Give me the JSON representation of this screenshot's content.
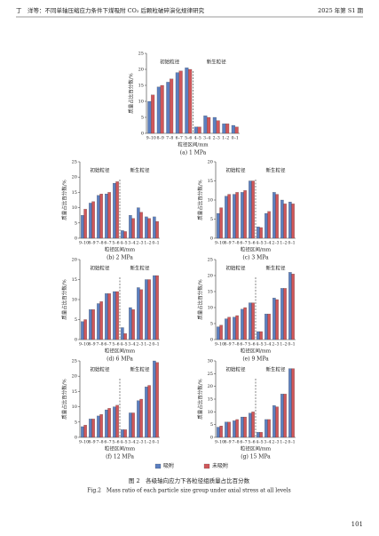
{
  "header": {
    "left": "丁　洋等：不同单轴压缩应力条件下煤吸附 CO₂ 后颗粒破碎演化规律研究",
    "right": "2025 年第 S1 期"
  },
  "legend": [
    {
      "name": "吸附",
      "color": "#5b7fc0"
    },
    {
      "name": "未吸附",
      "color": "#d0575a"
    }
  ],
  "chart_data": [
    {
      "type": "bar",
      "caption": "(a) 1 MPa",
      "ylabel": "质量占比百分数/%",
      "xlabel": "粒径区间/mm",
      "annotations": [
        "初始粒径",
        "新生粒径"
      ],
      "categories": [
        "9–10",
        "8–9",
        "7–8",
        "6–7",
        "5–6",
        "4–5",
        "3–4",
        "2–3",
        "1–2",
        "0–1"
      ],
      "series": [
        {
          "values": [
            10,
            14.5,
            16,
            19,
            20.5,
            2,
            5.5,
            5,
            3,
            2.5
          ]
        },
        {
          "values": [
            12,
            15,
            17,
            19.5,
            20,
            2,
            5,
            4,
            3,
            2
          ]
        }
      ],
      "ylim": [
        0,
        25
      ],
      "yticks": [
        0,
        5,
        10,
        15,
        20,
        25
      ]
    },
    {
      "type": "bar",
      "caption": "(b) 2 MPa",
      "ylabel": "质量占比百分数/%",
      "xlabel": "粒径区间/mm",
      "annotations": [
        "初始粒径",
        "新生粒径"
      ],
      "categories": [
        "9–10",
        "8–9",
        "7–8",
        "6–7",
        "5–6",
        "4–5",
        "3–4",
        "2–3",
        "1–2",
        "0–1"
      ],
      "series": [
        {
          "values": [
            7.5,
            11.5,
            14,
            14.5,
            18,
            2.5,
            7.5,
            10,
            7,
            7
          ]
        },
        {
          "values": [
            9.5,
            12,
            14.5,
            15,
            18.5,
            2.2,
            6.5,
            8.5,
            6.5,
            5.5
          ]
        }
      ],
      "ylim": [
        0,
        25
      ],
      "yticks": [
        0,
        5,
        10,
        15,
        20,
        25
      ]
    },
    {
      "type": "bar",
      "caption": "(c) 3 MPa",
      "ylabel": "质量占比百分数/%",
      "xlabel": "粒径区间/mm",
      "annotations": [
        "初始粒径",
        "新生粒径"
      ],
      "categories": [
        "9–10",
        "8–9",
        "7–8",
        "6–7",
        "5–6",
        "4–5",
        "3–4",
        "2–3",
        "1–2",
        "0–1"
      ],
      "series": [
        {
          "values": [
            6.5,
            11,
            11.5,
            12,
            15,
            3,
            6.5,
            12,
            10,
            9.5
          ]
        },
        {
          "values": [
            8,
            11.5,
            12,
            12.5,
            15,
            2.8,
            7,
            11.5,
            9,
            9
          ]
        }
      ],
      "ylim": [
        0,
        20
      ],
      "yticks": [
        0,
        5,
        10,
        15,
        20
      ]
    },
    {
      "type": "bar",
      "caption": "(d) 6 MPa",
      "ylabel": "质量占比百分数/%",
      "xlabel": "粒径区间/mm",
      "annotations": [
        "初始粒径",
        "新生粒径"
      ],
      "categories": [
        "9–10",
        "8–9",
        "7–8",
        "6–7",
        "5–6",
        "4–5",
        "3–4",
        "2–3",
        "1–2",
        "0–1"
      ],
      "series": [
        {
          "values": [
            4.5,
            7.5,
            9,
            11.5,
            12,
            3,
            8,
            13,
            15,
            16
          ]
        },
        {
          "values": [
            5,
            7.5,
            9.5,
            11.5,
            12,
            1.5,
            7.5,
            12.5,
            15,
            16
          ]
        }
      ],
      "ylim": [
        0,
        20
      ],
      "yticks": [
        0,
        5,
        10,
        15,
        20
      ]
    },
    {
      "type": "bar",
      "caption": "(e) 9 MPa",
      "ylabel": "质量占比百分数/%",
      "xlabel": "粒径区间/mm",
      "annotations": [
        "初始粒径",
        "新生粒径"
      ],
      "categories": [
        "9–10",
        "8–9",
        "7–8",
        "6–7",
        "5–6",
        "4–5",
        "3–4",
        "2–3",
        "1–2",
        "0–1"
      ],
      "series": [
        {
          "values": [
            4,
            6.5,
            7,
            9.5,
            11.5,
            2.5,
            8,
            13,
            16,
            21
          ]
        },
        {
          "values": [
            4.5,
            7,
            7.5,
            10,
            11.5,
            2.5,
            8,
            12.5,
            16,
            20.5
          ]
        }
      ],
      "ylim": [
        0,
        25
      ],
      "yticks": [
        0,
        5,
        10,
        15,
        20,
        25
      ]
    },
    {
      "type": "bar",
      "caption": "(f) 12 MPa",
      "ylabel": "质量占比百分数/%",
      "xlabel": "粒径区间/mm",
      "annotations": [
        "初始粒径",
        "新生粒径"
      ],
      "categories": [
        "9–10",
        "8–9",
        "7–8",
        "6–7",
        "5–6",
        "4–5",
        "3–4",
        "2–3",
        "1–2",
        "0–1"
      ],
      "series": [
        {
          "values": [
            3.5,
            6,
            7,
            9,
            10,
            2.5,
            8,
            12,
            16.5,
            25
          ]
        },
        {
          "values": [
            4,
            6,
            7.5,
            9.5,
            10.5,
            2.5,
            8,
            12.5,
            17,
            24.5
          ]
        }
      ],
      "ylim": [
        0,
        25
      ],
      "yticks": [
        0,
        5,
        10,
        15,
        20,
        25
      ]
    },
    {
      "type": "bar",
      "caption": "(g) 15 MPa",
      "ylabel": "质量占比百分数/%",
      "xlabel": "粒径区间/mm",
      "annotations": [
        "初始粒径",
        "新生粒径"
      ],
      "categories": [
        "9–10",
        "8–9",
        "7–8",
        "6–7",
        "5–6",
        "4–5",
        "3–4",
        "2–3",
        "1–2",
        "0–1"
      ],
      "series": [
        {
          "values": [
            4,
            6,
            6.5,
            8,
            9.5,
            2,
            7,
            12.5,
            17,
            27
          ]
        },
        {
          "values": [
            4.5,
            6,
            7,
            8,
            10,
            2,
            7,
            12,
            17,
            27
          ]
        }
      ],
      "ylim": [
        0,
        30
      ],
      "yticks": [
        0,
        5,
        10,
        15,
        20,
        25,
        30
      ]
    }
  ],
  "caption": {
    "zh": "图 2　各级轴向应力下各粒径组质量占比百分数",
    "en": "Fig.2　Mass ratio of each particle size group under axial stress at all levels"
  },
  "page_number": "101"
}
